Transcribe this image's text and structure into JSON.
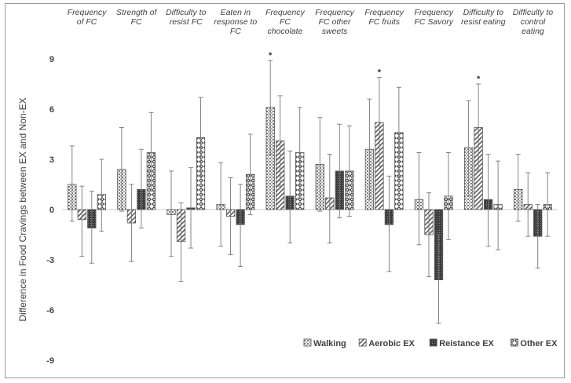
{
  "chart_data": {
    "type": "bar",
    "title": "",
    "xlabel": "",
    "ylabel": "Difference in Food Cravings between EX and Non-EX",
    "ylim": [
      -9,
      9
    ],
    "yticks": [
      9,
      6,
      3,
      0,
      -3,
      -6,
      -9
    ],
    "grid": false,
    "legend_position": "bottom-right",
    "categories": [
      [
        "Frequency",
        "of FC"
      ],
      [
        "Strength of",
        "FC"
      ],
      [
        "Difficulty to",
        "resist FC"
      ],
      [
        "Eaten in",
        "response to",
        "FC"
      ],
      [
        "Frequency",
        "FC",
        "chocolate"
      ],
      [
        "Frequency",
        "FC other",
        "sweets"
      ],
      [
        "Frequency",
        "FC fruits"
      ],
      [
        "Frequency",
        "FC Savory"
      ],
      [
        "Difficulty to",
        "resist eating"
      ],
      [
        "Difficulty to",
        "control",
        "eating"
      ]
    ],
    "series": [
      {
        "name": "Walking",
        "pattern": "dots",
        "values": [
          1.5,
          2.4,
          -0.3,
          0.3,
          6.1,
          2.7,
          3.6,
          0.6,
          3.7,
          1.2
        ],
        "err_hi": [
          3.8,
          4.9,
          2.3,
          2.8,
          8.9,
          5.5,
          6.6,
          3.4,
          6.5,
          3.3
        ],
        "err_lo": [
          -0.7,
          -0.1,
          -2.8,
          -2.2,
          3.3,
          -0.1,
          0.6,
          -2.1,
          0.8,
          -0.7
        ]
      },
      {
        "name": "Aerobic EX",
        "pattern": "diag",
        "values": [
          -0.6,
          -0.8,
          -1.9,
          -0.4,
          4.1,
          0.7,
          5.2,
          -1.5,
          4.9,
          0.3
        ],
        "err_hi": [
          1.4,
          1.5,
          0.4,
          1.9,
          6.8,
          3.3,
          7.9,
          1.0,
          7.5,
          2.2
        ],
        "err_lo": [
          -2.8,
          -3.1,
          -4.3,
          -2.7,
          1.4,
          -2.0,
          2.6,
          -4.0,
          2.3,
          -1.6
        ]
      },
      {
        "name": "Reistance EX",
        "pattern": "dense",
        "values": [
          -1.1,
          1.2,
          0.1,
          -0.9,
          0.8,
          2.3,
          -0.9,
          -4.2,
          0.6,
          -1.6
        ],
        "err_hi": [
          1.1,
          3.6,
          2.5,
          1.5,
          3.5,
          5.1,
          2.0,
          -1.5,
          3.3,
          0.3
        ],
        "err_lo": [
          -3.2,
          -1.1,
          -2.3,
          -3.4,
          -2.0,
          -0.5,
          -3.7,
          -6.8,
          -2.2,
          -3.5
        ]
      },
      {
        "name": "Other EX",
        "pattern": "diamond",
        "values": [
          0.9,
          3.4,
          4.3,
          2.1,
          3.4,
          2.3,
          4.6,
          0.8,
          0.3,
          0.3
        ],
        "err_hi": [
          3.0,
          5.8,
          6.7,
          4.5,
          6.1,
          5.0,
          7.3,
          3.4,
          2.9,
          2.2
        ],
        "err_lo": [
          -1.3,
          1.1,
          2.0,
          -0.3,
          0.7,
          -0.4,
          1.9,
          -1.8,
          -2.4,
          -1.6
        ]
      }
    ],
    "annotations": [
      {
        "text": "*",
        "category_index": 4,
        "series_index": 0
      },
      {
        "text": "*",
        "category_index": 6,
        "series_index": 1
      },
      {
        "text": "*",
        "category_index": 8,
        "series_index": 1
      }
    ]
  }
}
